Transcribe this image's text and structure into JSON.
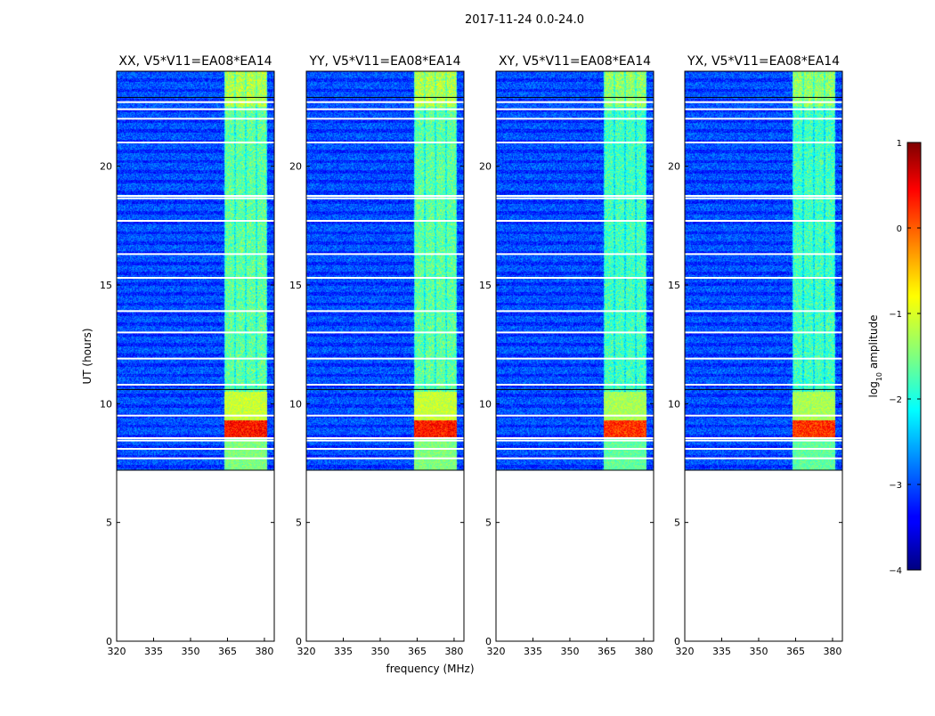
{
  "figure_title": "2017-11-24 0.0-24.0",
  "chart_data": {
    "type": "heatmap",
    "panels": [
      {
        "title": "XX, V5*V11=EA08*EA14",
        "pol": "XX"
      },
      {
        "title": "YY, V5*V11=EA08*EA14",
        "pol": "YY"
      },
      {
        "title": "XY, V5*V11=EA08*EA14",
        "pol": "XY"
      },
      {
        "title": "YX, V5*V11=EA08*EA14",
        "pol": "YX"
      }
    ],
    "xlabel": "frequency (MHz)",
    "ylabel": "UT (hours)",
    "xlim": [
      320,
      384
    ],
    "ylim": [
      0,
      24
    ],
    "xticks": [
      320,
      335,
      350,
      365,
      380
    ],
    "yticks": [
      0,
      5,
      10,
      15,
      20
    ],
    "data_start_hour": 7.2,
    "band_mhz": [
      363.5,
      381
    ],
    "flag_gaps_hours": [
      7.7,
      8.1,
      8.45,
      8.55,
      9.5,
      10.8,
      11.9,
      13.0,
      13.9,
      15.3,
      16.3,
      17.7,
      18.65,
      18.75,
      21.0,
      22.0,
      22.4,
      22.7
    ],
    "colorbar": {
      "label": "log10 amplitude",
      "label_main": "log",
      "label_sub": "10",
      "label_rest": " amplitude",
      "min": -4,
      "max": 1,
      "ticks": [
        -4,
        -3,
        -2,
        -1,
        0,
        1
      ],
      "tick_labels": [
        "−4",
        "−3",
        "−2",
        "−1",
        "0",
        "1"
      ],
      "colormap": "jet"
    }
  }
}
